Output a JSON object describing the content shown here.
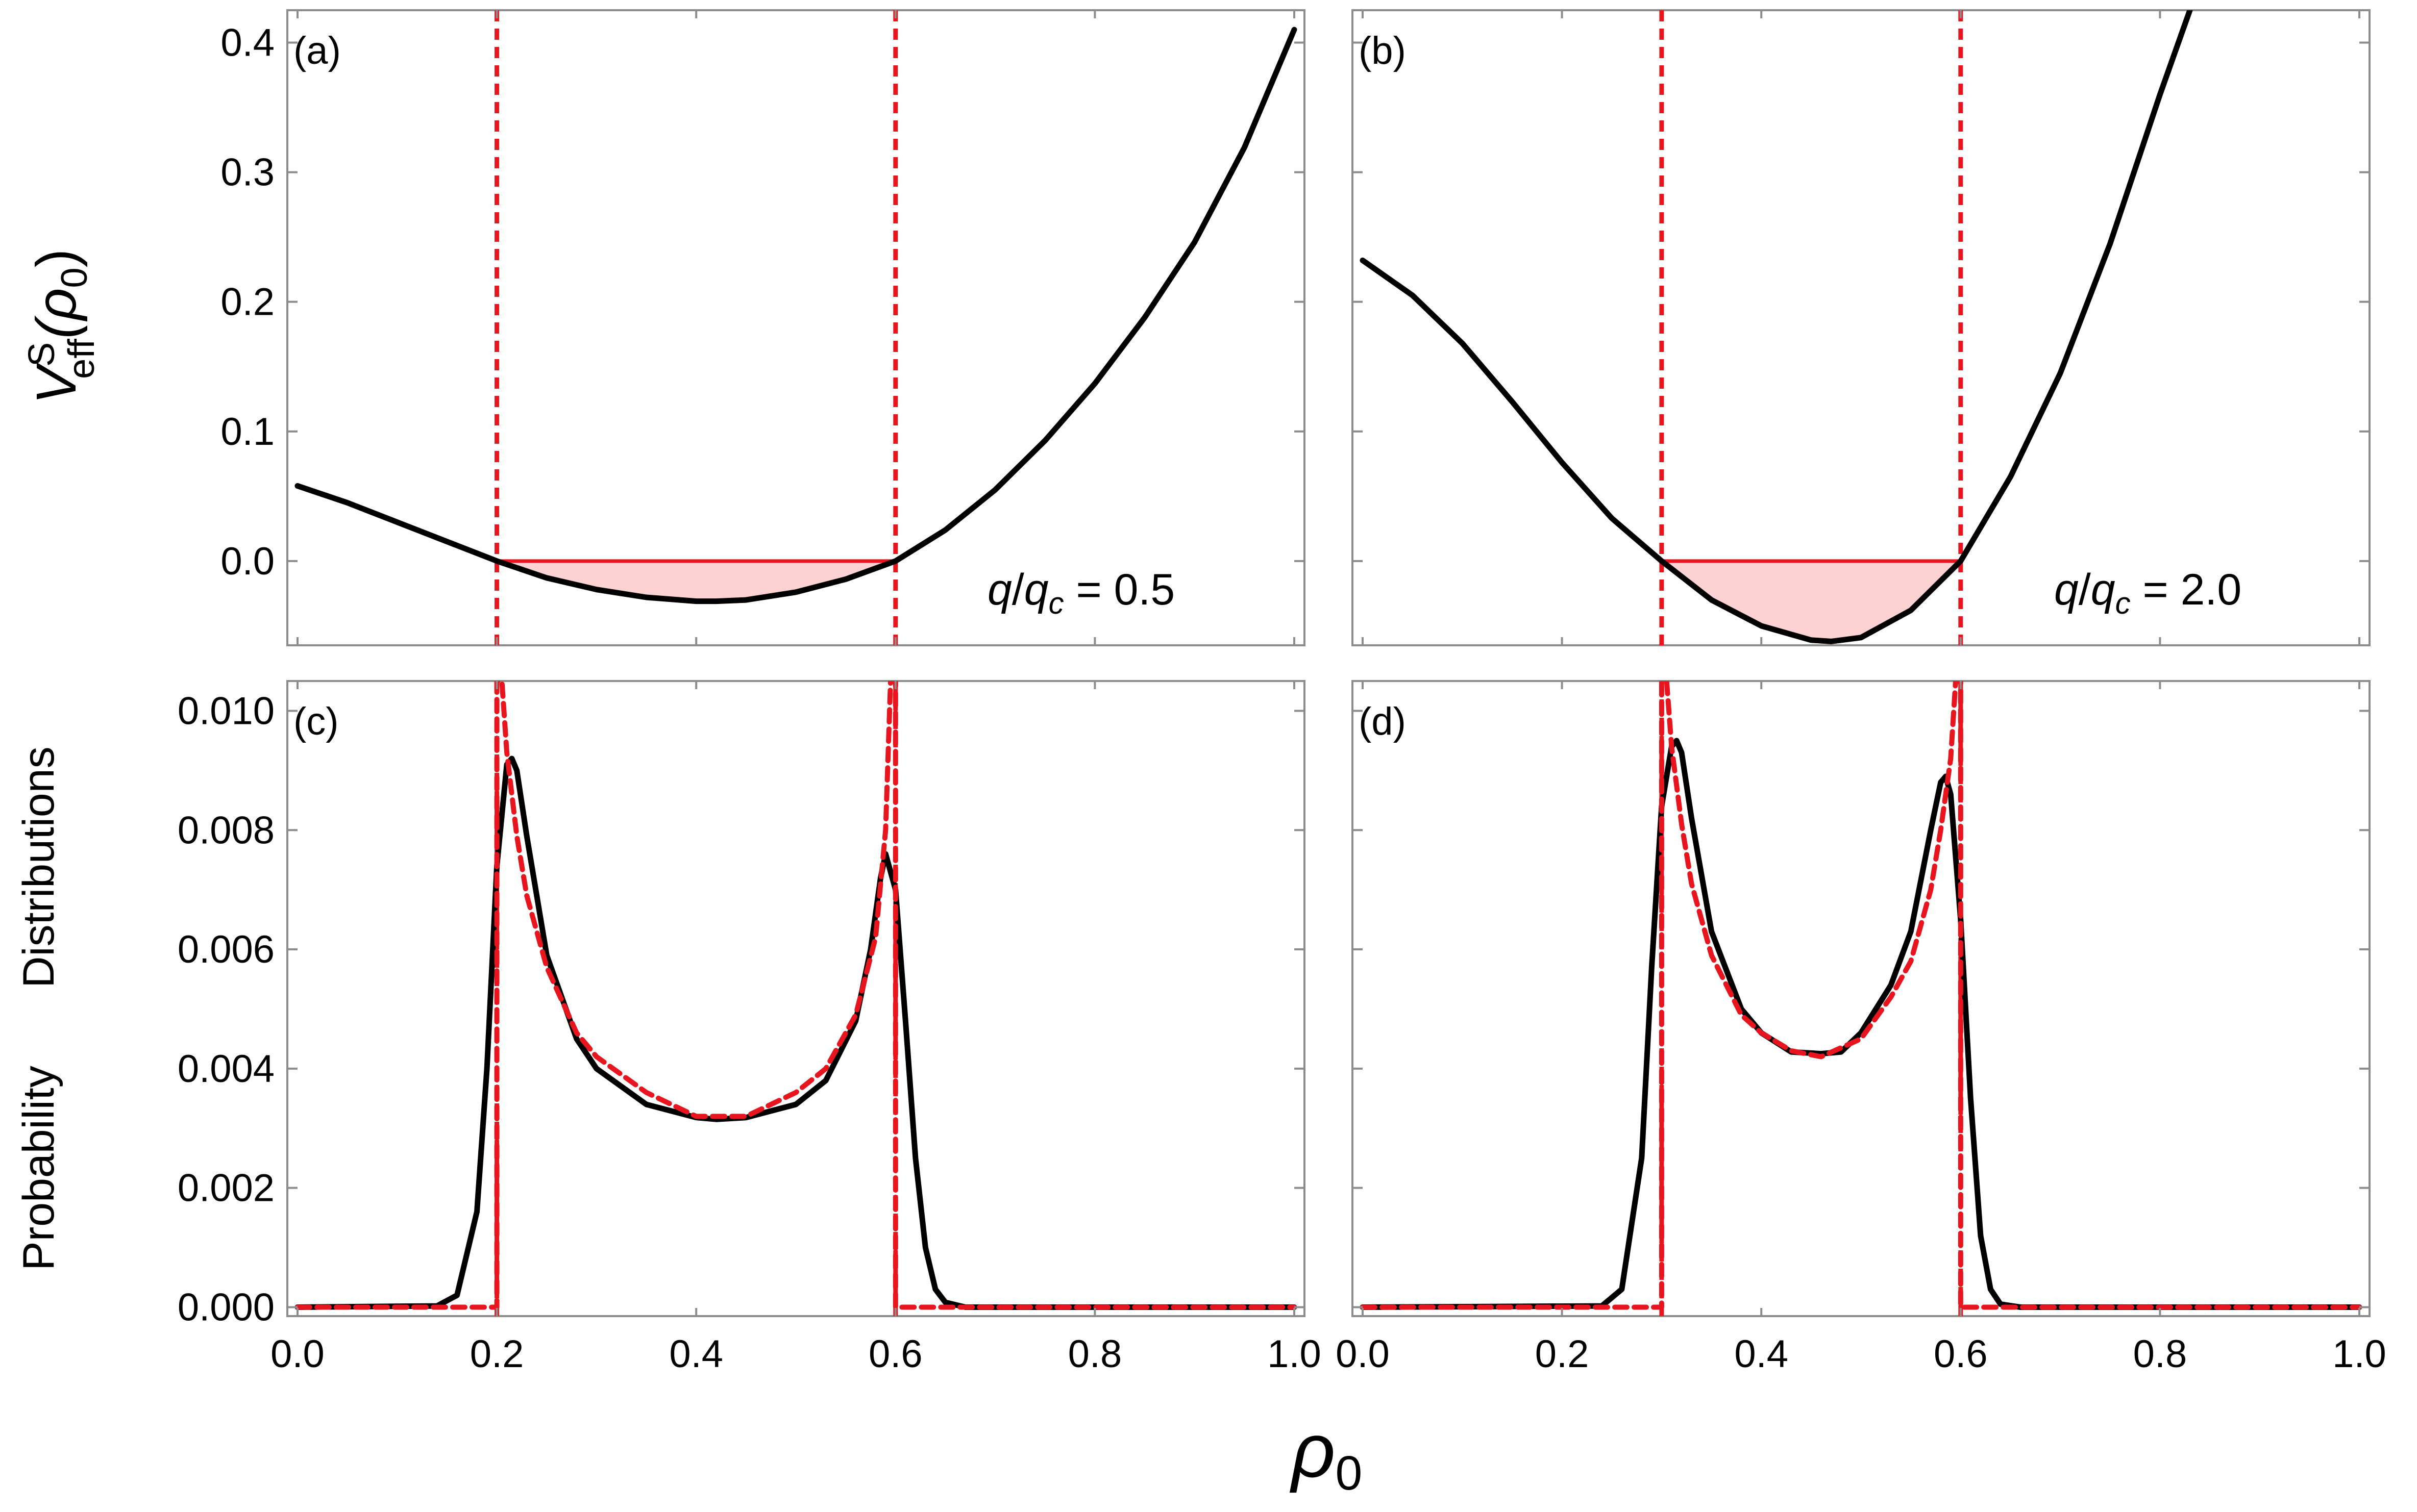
{
  "x_axis": {
    "label": "ρ",
    "label_subscript": "0",
    "tick_labels": [
      "0.0",
      "0.2",
      "0.4",
      "0.6",
      "0.8",
      "1.0"
    ]
  },
  "y_axis_top": {
    "label_main": "V",
    "label_superscript": "S",
    "label_subscript": "eff",
    "label_arg": "(ρ",
    "label_arg_sub": "0",
    "label_close": ")",
    "tick_labels": [
      "0.0",
      "0.1",
      "0.2",
      "0.3",
      "0.4"
    ]
  },
  "y_axis_bottom": {
    "label_line1": "Probability",
    "label_line2": "Distributions",
    "tick_labels": [
      "0.000",
      "0.002",
      "0.004",
      "0.006",
      "0.008",
      "0.010"
    ]
  },
  "panels": {
    "a": {
      "tag": "(a)",
      "param_q": "q",
      "param_qc": "q",
      "param_c": "c",
      "param_value": " = 0.5"
    },
    "b": {
      "tag": "(b)",
      "param_q": "q",
      "param_qc": "q",
      "param_c": "c",
      "param_value": " = 2.0"
    },
    "c": {
      "tag": "(c)"
    },
    "d": {
      "tag": "(d)"
    }
  },
  "colors": {
    "curve": "#000000",
    "dashed": "#e8141e",
    "fill": "#fcd2d2",
    "frame": "#8c8c8c"
  },
  "chart_data": [
    {
      "id": "a",
      "type": "line",
      "xlim": [
        0,
        1
      ],
      "ylim": [
        -0.065,
        0.425
      ],
      "turning_points": [
        0.2,
        0.6
      ],
      "series": [
        {
          "style": "solid-black",
          "x": [
            0.0,
            0.05,
            0.1,
            0.15,
            0.2,
            0.25,
            0.3,
            0.35,
            0.4,
            0.42,
            0.45,
            0.5,
            0.55,
            0.6,
            0.65,
            0.7,
            0.75,
            0.8,
            0.85,
            0.9,
            0.95,
            1.0
          ],
          "y": [
            0.058,
            0.045,
            0.03,
            0.015,
            0.0,
            -0.013,
            -0.022,
            -0.028,
            -0.031,
            -0.031,
            -0.03,
            -0.024,
            -0.014,
            0.0,
            0.024,
            0.055,
            0.093,
            0.137,
            0.188,
            0.246,
            0.319,
            0.41
          ]
        }
      ],
      "energy_level": 0.0
    },
    {
      "id": "b",
      "type": "line",
      "xlim": [
        0,
        1
      ],
      "ylim": [
        -0.065,
        0.425
      ],
      "turning_points": [
        0.3,
        0.6
      ],
      "series": [
        {
          "style": "solid-black",
          "x": [
            0.0,
            0.05,
            0.1,
            0.15,
            0.2,
            0.25,
            0.3,
            0.35,
            0.4,
            0.45,
            0.47,
            0.5,
            0.55,
            0.6,
            0.65,
            0.7,
            0.75,
            0.8,
            0.83
          ],
          "y": [
            0.232,
            0.205,
            0.168,
            0.123,
            0.076,
            0.033,
            0.0,
            -0.03,
            -0.05,
            -0.061,
            -0.062,
            -0.059,
            -0.038,
            0.0,
            0.065,
            0.145,
            0.245,
            0.36,
            0.425
          ]
        }
      ],
      "energy_level": 0.0
    },
    {
      "id": "c",
      "type": "line",
      "xlim": [
        0,
        1
      ],
      "ylim": [
        -0.00015,
        0.0105
      ],
      "turning_points": [
        0.2,
        0.6
      ],
      "series": [
        {
          "style": "solid-black",
          "x": [
            0.0,
            0.14,
            0.16,
            0.18,
            0.19,
            0.2,
            0.21,
            0.215,
            0.22,
            0.23,
            0.25,
            0.28,
            0.3,
            0.35,
            0.4,
            0.42,
            0.45,
            0.5,
            0.53,
            0.56,
            0.575,
            0.585,
            0.59,
            0.6,
            0.61,
            0.62,
            0.63,
            0.64,
            0.65,
            0.67,
            1.0
          ],
          "y": [
            0.0,
            2e-05,
            0.0002,
            0.0016,
            0.004,
            0.0074,
            0.0091,
            0.0092,
            0.009,
            0.0079,
            0.0059,
            0.0045,
            0.004,
            0.0034,
            0.00318,
            0.00315,
            0.00318,
            0.0034,
            0.0038,
            0.0048,
            0.006,
            0.0072,
            0.0076,
            0.007,
            0.0048,
            0.0025,
            0.001,
            0.0003,
            8e-05,
            0.0,
            0.0
          ]
        },
        {
          "style": "dashed-red",
          "x": [
            0.0,
            0.2,
            0.2,
            0.205,
            0.21,
            0.22,
            0.23,
            0.25,
            0.28,
            0.3,
            0.35,
            0.4,
            0.45,
            0.5,
            0.53,
            0.56,
            0.58,
            0.59,
            0.595,
            0.6,
            0.6,
            1.0
          ],
          "y": [
            0.0,
            0.0,
            0.0105,
            0.0105,
            0.0093,
            0.0079,
            0.0069,
            0.0057,
            0.0046,
            0.0042,
            0.0036,
            0.0032,
            0.0032,
            0.0036,
            0.004,
            0.0049,
            0.0062,
            0.008,
            0.0105,
            0.0105,
            0.0,
            0.0
          ]
        }
      ]
    },
    {
      "id": "d",
      "type": "line",
      "xlim": [
        0,
        1
      ],
      "ylim": [
        -0.00015,
        0.0105
      ],
      "turning_points": [
        0.3,
        0.6
      ],
      "series": [
        {
          "style": "solid-black",
          "x": [
            0.0,
            0.24,
            0.26,
            0.28,
            0.29,
            0.3,
            0.31,
            0.315,
            0.32,
            0.33,
            0.35,
            0.38,
            0.4,
            0.43,
            0.46,
            0.48,
            0.5,
            0.53,
            0.55,
            0.57,
            0.58,
            0.585,
            0.59,
            0.6,
            0.61,
            0.62,
            0.63,
            0.64,
            0.66,
            1.0
          ],
          "y": [
            0.0,
            2e-05,
            0.0003,
            0.0025,
            0.0057,
            0.0084,
            0.0094,
            0.0095,
            0.0093,
            0.0082,
            0.0063,
            0.005,
            0.0046,
            0.00428,
            0.00425,
            0.00428,
            0.0046,
            0.0054,
            0.0063,
            0.008,
            0.0088,
            0.0089,
            0.0086,
            0.0065,
            0.0035,
            0.0012,
            0.0003,
            5e-05,
            0.0,
            0.0
          ]
        },
        {
          "style": "dashed-red",
          "x": [
            0.0,
            0.3,
            0.3,
            0.305,
            0.31,
            0.32,
            0.33,
            0.35,
            0.38,
            0.4,
            0.43,
            0.46,
            0.5,
            0.53,
            0.55,
            0.57,
            0.58,
            0.59,
            0.595,
            0.6,
            0.6,
            1.0
          ],
          "y": [
            0.0,
            0.0,
            0.0105,
            0.0105,
            0.0094,
            0.0081,
            0.0071,
            0.0059,
            0.0049,
            0.0046,
            0.0043,
            0.0042,
            0.0045,
            0.0052,
            0.0058,
            0.007,
            0.008,
            0.0092,
            0.0105,
            0.0105,
            0.0,
            0.0
          ]
        }
      ]
    }
  ]
}
